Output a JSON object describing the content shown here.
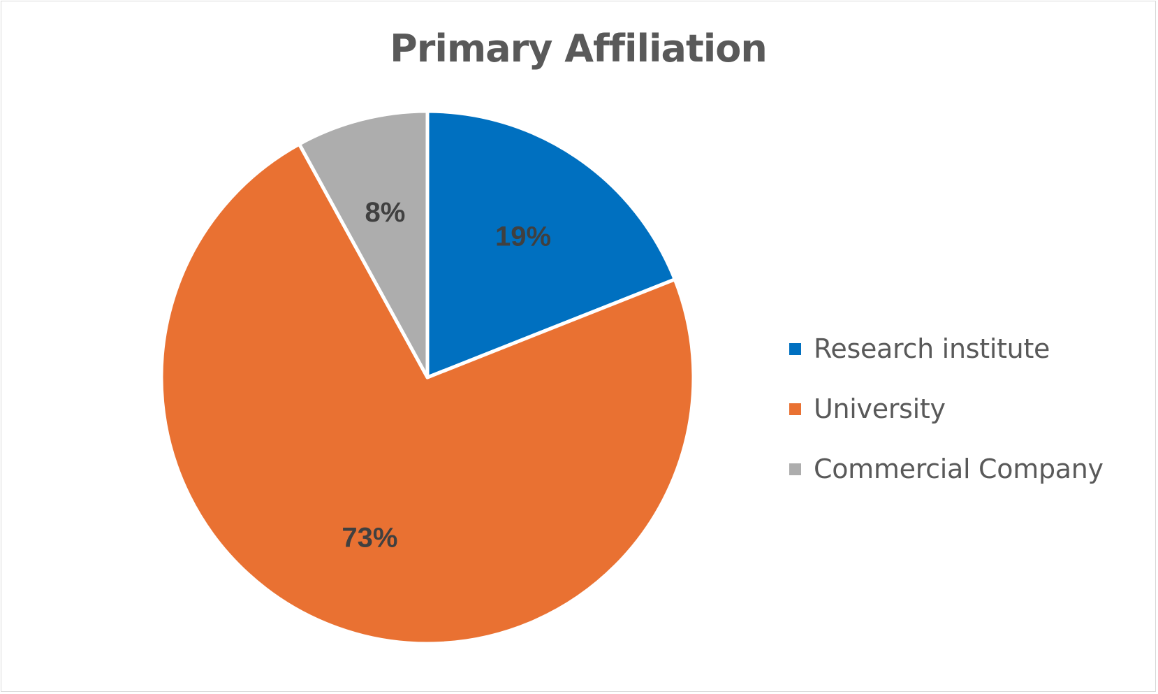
{
  "chart_data": {
    "type": "pie",
    "title": "Primary Affiliation",
    "categories": [
      "Research institute",
      "University",
      "Commercial Company"
    ],
    "values": [
      19,
      73,
      8
    ],
    "value_unit": "%",
    "colors": [
      "#0070C0",
      "#E97132",
      "#ADADAD"
    ],
    "start_angle": "12 o'clock, clockwise",
    "legend_position": "right"
  }
}
